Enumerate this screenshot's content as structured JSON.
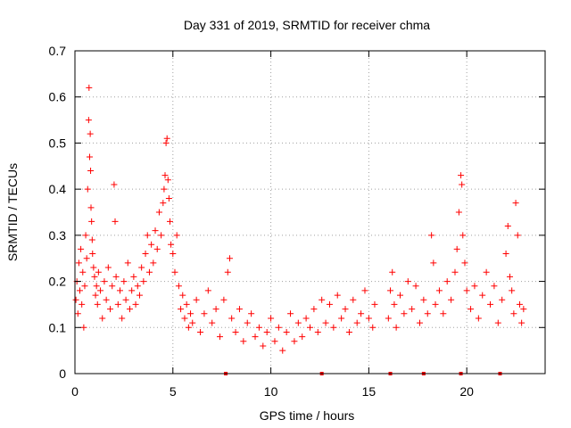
{
  "chart_data": {
    "type": "scatter",
    "title": "Day 331 of 2019, SRMTID for receiver chma",
    "xlabel": "GPS time / hours",
    "ylabel": "SRMTID / TECUs",
    "xlim": [
      0,
      24
    ],
    "ylim": [
      0,
      0.7
    ],
    "xticks": [
      0,
      5,
      10,
      15,
      20
    ],
    "xtick_labels": [
      "0",
      "5",
      "10",
      "15",
      "20"
    ],
    "yticks": [
      0,
      0.1,
      0.2,
      0.3,
      0.4,
      0.5,
      0.6,
      0.7
    ],
    "ytick_labels": [
      "0",
      "0.1",
      "0.2",
      "0.3",
      "0.4",
      "0.5",
      "0.6",
      "0.7"
    ],
    "grid": true,
    "marker": "+",
    "color": "#ff0000",
    "series": [
      {
        "name": "SRMTID",
        "points": [
          [
            0.05,
            0.16
          ],
          [
            0.1,
            0.2
          ],
          [
            0.15,
            0.13
          ],
          [
            0.2,
            0.24
          ],
          [
            0.25,
            0.18
          ],
          [
            0.3,
            0.27
          ],
          [
            0.35,
            0.15
          ],
          [
            0.4,
            0.22
          ],
          [
            0.45,
            0.1
          ],
          [
            0.5,
            0.19
          ],
          [
            0.55,
            0.3
          ],
          [
            0.6,
            0.25
          ],
          [
            0.65,
            0.4
          ],
          [
            0.7,
            0.55
          ],
          [
            0.72,
            0.62
          ],
          [
            0.75,
            0.47
          ],
          [
            0.78,
            0.52
          ],
          [
            0.8,
            0.44
          ],
          [
            0.82,
            0.36
          ],
          [
            0.85,
            0.33
          ],
          [
            0.88,
            0.29
          ],
          [
            0.9,
            0.26
          ],
          [
            0.95,
            0.23
          ],
          [
            1.0,
            0.21
          ],
          [
            1.05,
            0.17
          ],
          [
            1.1,
            0.19
          ],
          [
            1.15,
            0.15
          ],
          [
            1.2,
            0.22
          ],
          [
            1.3,
            0.18
          ],
          [
            1.4,
            0.12
          ],
          [
            1.5,
            0.2
          ],
          [
            1.6,
            0.16
          ],
          [
            1.7,
            0.23
          ],
          [
            1.8,
            0.14
          ],
          [
            1.9,
            0.19
          ],
          [
            2.0,
            0.41
          ],
          [
            2.05,
            0.33
          ],
          [
            2.1,
            0.21
          ],
          [
            2.2,
            0.15
          ],
          [
            2.3,
            0.18
          ],
          [
            2.4,
            0.12
          ],
          [
            2.5,
            0.2
          ],
          [
            2.6,
            0.16
          ],
          [
            2.7,
            0.24
          ],
          [
            2.8,
            0.14
          ],
          [
            2.9,
            0.18
          ],
          [
            3.0,
            0.21
          ],
          [
            3.1,
            0.15
          ],
          [
            3.2,
            0.19
          ],
          [
            3.3,
            0.17
          ],
          [
            3.4,
            0.23
          ],
          [
            3.5,
            0.2
          ],
          [
            3.6,
            0.26
          ],
          [
            3.7,
            0.3
          ],
          [
            3.8,
            0.22
          ],
          [
            3.9,
            0.28
          ],
          [
            4.0,
            0.24
          ],
          [
            4.1,
            0.31
          ],
          [
            4.2,
            0.27
          ],
          [
            4.3,
            0.35
          ],
          [
            4.4,
            0.3
          ],
          [
            4.5,
            0.37
          ],
          [
            4.55,
            0.4
          ],
          [
            4.6,
            0.43
          ],
          [
            4.65,
            0.5
          ],
          [
            4.7,
            0.51
          ],
          [
            4.75,
            0.42
          ],
          [
            4.8,
            0.38
          ],
          [
            4.85,
            0.33
          ],
          [
            4.9,
            0.28
          ],
          [
            5.0,
            0.26
          ],
          [
            5.1,
            0.22
          ],
          [
            5.2,
            0.3
          ],
          [
            5.3,
            0.19
          ],
          [
            5.4,
            0.14
          ],
          [
            5.5,
            0.17
          ],
          [
            5.6,
            0.12
          ],
          [
            5.7,
            0.15
          ],
          [
            5.8,
            0.1
          ],
          [
            5.9,
            0.13
          ],
          [
            6.0,
            0.11
          ],
          [
            6.2,
            0.16
          ],
          [
            6.4,
            0.09
          ],
          [
            6.6,
            0.13
          ],
          [
            6.8,
            0.18
          ],
          [
            7.0,
            0.11
          ],
          [
            7.2,
            0.14
          ],
          [
            7.4,
            0.08
          ],
          [
            7.6,
            0.16
          ],
          [
            7.8,
            0.22
          ],
          [
            7.9,
            0.25
          ],
          [
            8.0,
            0.12
          ],
          [
            8.2,
            0.09
          ],
          [
            8.4,
            0.14
          ],
          [
            8.6,
            0.07
          ],
          [
            8.8,
            0.11
          ],
          [
            9.0,
            0.13
          ],
          [
            9.2,
            0.08
          ],
          [
            9.4,
            0.1
          ],
          [
            9.6,
            0.06
          ],
          [
            9.8,
            0.09
          ],
          [
            10.0,
            0.12
          ],
          [
            10.2,
            0.07
          ],
          [
            10.4,
            0.1
          ],
          [
            10.6,
            0.05
          ],
          [
            10.8,
            0.09
          ],
          [
            11.0,
            0.13
          ],
          [
            11.2,
            0.07
          ],
          [
            11.4,
            0.11
          ],
          [
            11.6,
            0.08
          ],
          [
            11.8,
            0.12
          ],
          [
            12.0,
            0.1
          ],
          [
            12.2,
            0.14
          ],
          [
            12.4,
            0.09
          ],
          [
            12.6,
            0.16
          ],
          [
            12.8,
            0.11
          ],
          [
            13.0,
            0.15
          ],
          [
            13.2,
            0.1
          ],
          [
            13.4,
            0.17
          ],
          [
            13.6,
            0.12
          ],
          [
            13.8,
            0.14
          ],
          [
            14.0,
            0.09
          ],
          [
            14.2,
            0.16
          ],
          [
            14.4,
            0.11
          ],
          [
            14.6,
            0.13
          ],
          [
            14.8,
            0.18
          ],
          [
            15.0,
            0.12
          ],
          [
            15.2,
            0.1
          ],
          [
            15.3,
            0.15
          ],
          [
            16.0,
            0.12
          ],
          [
            16.1,
            0.18
          ],
          [
            16.2,
            0.22
          ],
          [
            16.3,
            0.15
          ],
          [
            16.4,
            0.1
          ],
          [
            16.6,
            0.17
          ],
          [
            16.8,
            0.13
          ],
          [
            17.0,
            0.2
          ],
          [
            17.2,
            0.14
          ],
          [
            17.4,
            0.19
          ],
          [
            17.6,
            0.11
          ],
          [
            17.8,
            0.16
          ],
          [
            18.0,
            0.13
          ],
          [
            18.2,
            0.3
          ],
          [
            18.3,
            0.24
          ],
          [
            18.4,
            0.15
          ],
          [
            18.6,
            0.18
          ],
          [
            18.8,
            0.13
          ],
          [
            19.0,
            0.2
          ],
          [
            19.2,
            0.16
          ],
          [
            19.4,
            0.22
          ],
          [
            19.5,
            0.27
          ],
          [
            19.6,
            0.35
          ],
          [
            19.7,
            0.43
          ],
          [
            19.75,
            0.41
          ],
          [
            19.8,
            0.3
          ],
          [
            19.9,
            0.24
          ],
          [
            20.0,
            0.18
          ],
          [
            20.2,
            0.14
          ],
          [
            20.4,
            0.19
          ],
          [
            20.6,
            0.12
          ],
          [
            20.8,
            0.17
          ],
          [
            21.0,
            0.22
          ],
          [
            21.2,
            0.15
          ],
          [
            21.4,
            0.19
          ],
          [
            21.6,
            0.11
          ],
          [
            21.8,
            0.16
          ],
          [
            22.0,
            0.26
          ],
          [
            22.1,
            0.32
          ],
          [
            22.2,
            0.21
          ],
          [
            22.3,
            0.18
          ],
          [
            22.4,
            0.13
          ],
          [
            22.5,
            0.37
          ],
          [
            22.6,
            0.3
          ],
          [
            22.7,
            0.15
          ],
          [
            22.8,
            0.11
          ],
          [
            22.9,
            0.14
          ]
        ]
      }
    ],
    "data_gaps": [
      {
        "x": 7.7,
        "y": 0
      },
      {
        "x": 12.6,
        "y": 0
      },
      {
        "x": 16.1,
        "y": 0
      },
      {
        "x": 17.8,
        "y": 0
      },
      {
        "x": 19.7,
        "y": 0
      },
      {
        "x": 21.7,
        "y": 0
      }
    ]
  }
}
